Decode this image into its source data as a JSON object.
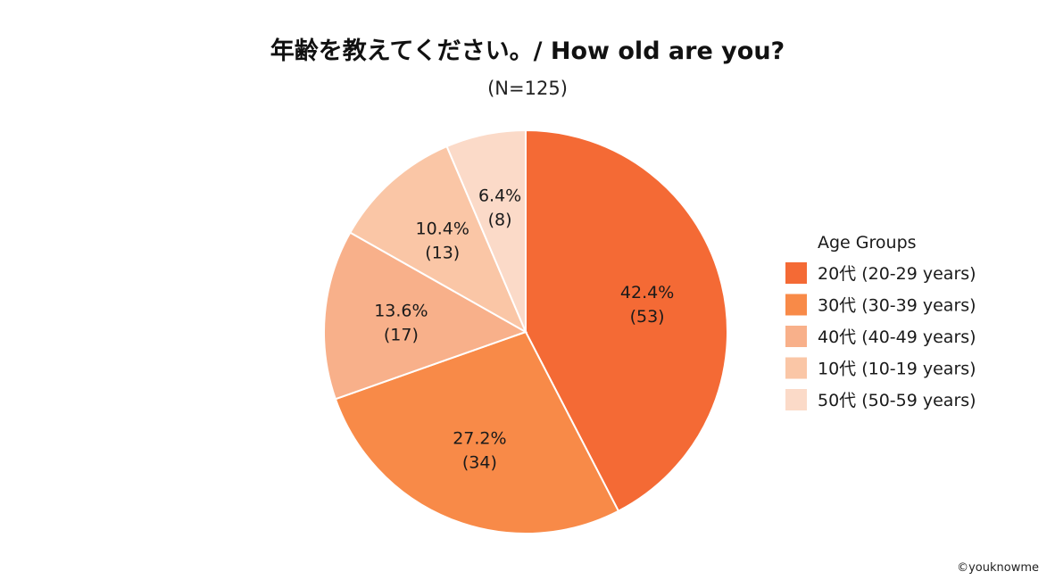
{
  "chart_data": {
    "type": "pie",
    "title": "年齢を教えてください。/ How old are you?",
    "subtitle": "(N=125)",
    "total": 125,
    "legend_title": "Age Groups",
    "legend_position": "right",
    "slices": [
      {
        "label": "20代 (20-29 years)",
        "value": 53,
        "percent": "42.4%",
        "count_label": "(53)",
        "color": "#f46a35"
      },
      {
        "label": "30代 (30-39 years)",
        "value": 34,
        "percent": "27.2%",
        "count_label": "(34)",
        "color": "#f88a48"
      },
      {
        "label": "40代 (40-49 years)",
        "value": 17,
        "percent": "13.6%",
        "count_label": "(17)",
        "color": "#f8b08a"
      },
      {
        "label": "10代 (10-19 years)",
        "value": 13,
        "percent": "10.4%",
        "count_label": "(13)",
        "color": "#fac6a6"
      },
      {
        "label": "50代 (50-59 years)",
        "value": 8,
        "percent": "6.4%",
        "count_label": "(8)",
        "color": "#fbdac8"
      }
    ]
  },
  "credit": "©youknowme"
}
